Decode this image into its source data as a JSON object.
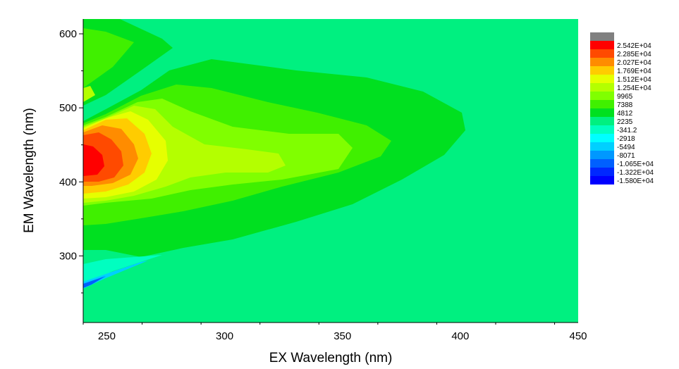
{
  "chart_data": {
    "type": "heatmap",
    "xlabel": "EX Wavelength (nm)",
    "ylabel": "EM Wavelength (nm)",
    "xlim": [
      240,
      450
    ],
    "ylim": [
      210,
      620
    ],
    "x_ticks": [
      250,
      300,
      350,
      400,
      450
    ],
    "y_ticks": [
      300,
      400,
      500,
      600
    ],
    "background_level_color": "#00f080",
    "legend_levels": [
      {
        "label": "",
        "color": "#808080"
      },
      {
        "label": "2.542E+04",
        "color": "#ff0000"
      },
      {
        "label": "2.285E+04",
        "color": "#ff4a00"
      },
      {
        "label": "2.027E+04",
        "color": "#ff8c00"
      },
      {
        "label": "1.769E+04",
        "color": "#ffcc00"
      },
      {
        "label": "1.512E+04",
        "color": "#e6ff00"
      },
      {
        "label": "1.254E+04",
        "color": "#b4ff00"
      },
      {
        "label": "9965",
        "color": "#80ff00"
      },
      {
        "label": "7388",
        "color": "#40f000"
      },
      {
        "label": "4812",
        "color": "#00e020"
      },
      {
        "label": "2235",
        "color": "#00f080"
      },
      {
        "label": "-341.2",
        "color": "#00ffc0"
      },
      {
        "label": "-2918",
        "color": "#00ffff"
      },
      {
        "label": "-5494",
        "color": "#00d0ff"
      },
      {
        "label": "-8071",
        "color": "#0098ff"
      },
      {
        "label": "-1.065E+04",
        "color": "#0060ff"
      },
      {
        "label": "-1.322E+04",
        "color": "#0028ff"
      },
      {
        "label": "-1.580E+04",
        "color": "#0000ff"
      }
    ],
    "peaks": [
      {
        "ex": 240,
        "em": 425,
        "value": 25420
      },
      {
        "ex": 300,
        "em": 420,
        "value": 12540
      }
    ]
  }
}
